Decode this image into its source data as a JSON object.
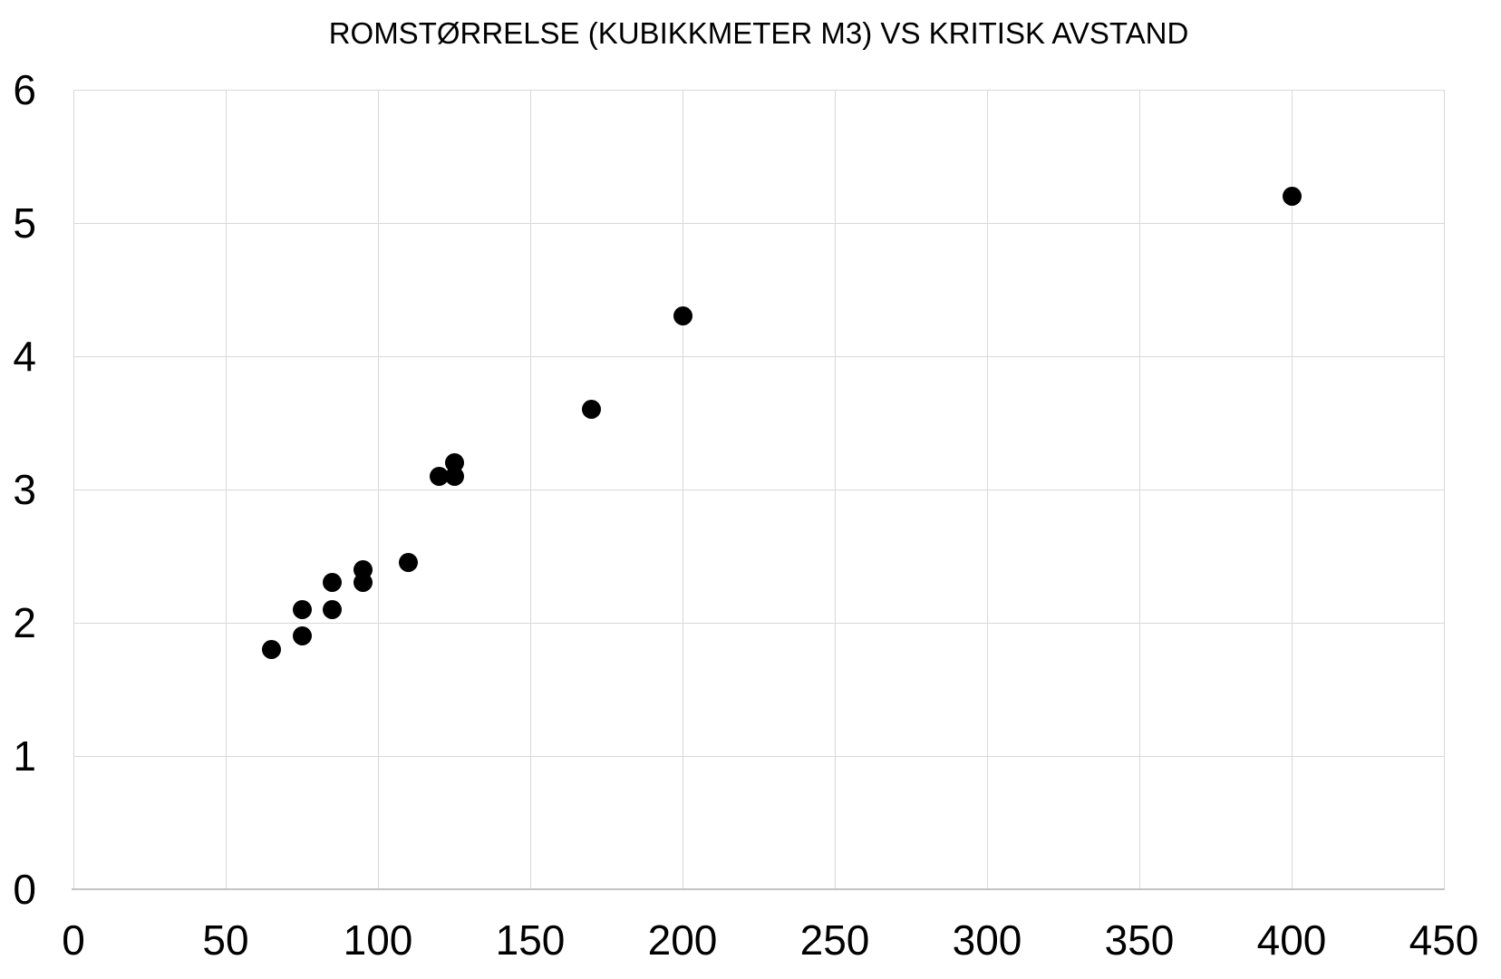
{
  "chart_data": {
    "type": "scatter",
    "title": "ROMSTØRRELSE (KUBIKKMETER M3) VS KRITISK AVSTAND",
    "xlabel": "",
    "ylabel": "",
    "xlim": [
      0,
      450
    ],
    "ylim": [
      0,
      6
    ],
    "x_ticks": [
      0,
      50,
      100,
      150,
      200,
      250,
      300,
      350,
      400,
      450
    ],
    "y_ticks": [
      0,
      1,
      2,
      3,
      4,
      5,
      6
    ],
    "grid": true,
    "legend": "none",
    "points": [
      {
        "x": 65,
        "y": 1.8
      },
      {
        "x": 75,
        "y": 1.9
      },
      {
        "x": 75,
        "y": 2.1
      },
      {
        "x": 85,
        "y": 2.1
      },
      {
        "x": 85,
        "y": 2.3
      },
      {
        "x": 95,
        "y": 2.3
      },
      {
        "x": 95,
        "y": 2.4
      },
      {
        "x": 110,
        "y": 2.45
      },
      {
        "x": 120,
        "y": 3.1
      },
      {
        "x": 125,
        "y": 3.1
      },
      {
        "x": 125,
        "y": 3.2
      },
      {
        "x": 170,
        "y": 3.6
      },
      {
        "x": 200,
        "y": 4.3
      },
      {
        "x": 400,
        "y": 5.2
      }
    ],
    "colors": {
      "marker": "#000000",
      "gridline": "#d9d9d9",
      "axis_line": "#c3c3c3",
      "text": "#000000",
      "background": "#ffffff"
    }
  }
}
